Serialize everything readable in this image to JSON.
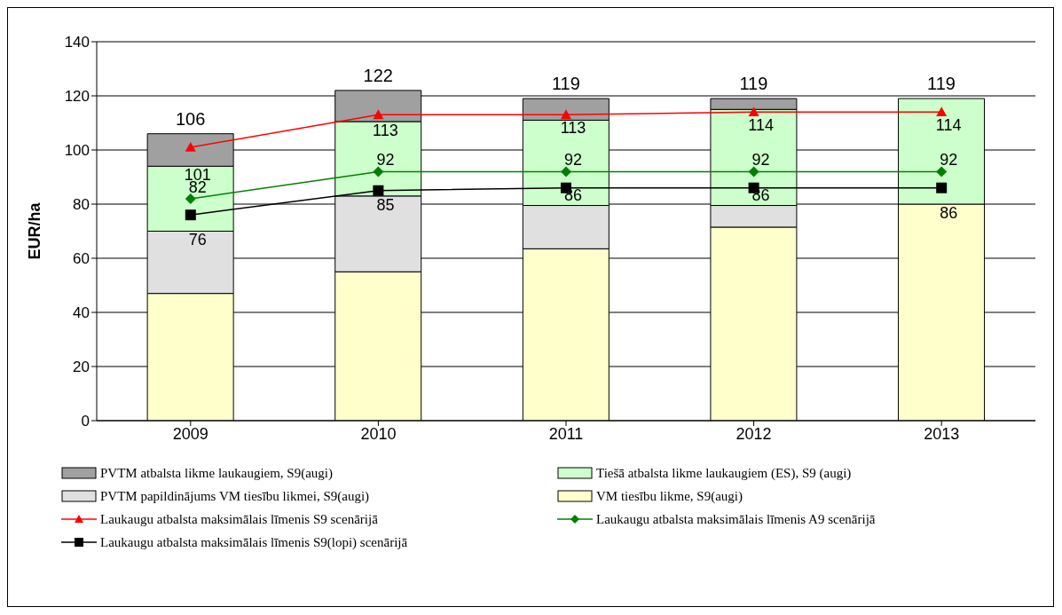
{
  "chart_data": {
    "type": "bar",
    "stacked": true,
    "ylabel": "EUR/ha",
    "categories": [
      "2009",
      "2010",
      "2011",
      "2012",
      "2013"
    ],
    "series": [
      {
        "name": "VM tiesību likme, S9(augi)",
        "color": "#ffffcc",
        "values": [
          47,
          55,
          63.5,
          71.5,
          80
        ]
      },
      {
        "name": "PVTM papildinājums VM tiesību likmei, S9(augi)",
        "color": "#e0e0e0",
        "values": [
          23,
          28,
          16,
          8,
          0
        ]
      },
      {
        "name": "Tiešā atbalsta likme laukaugiem (ES), S9 (augi)",
        "color": "#ccffcc",
        "values": [
          24,
          27.5,
          31.5,
          35.5,
          39
        ]
      },
      {
        "name": "PVTM atbalsta likme laukaugiem, S9(augi)",
        "color": "#a0a0a0",
        "values": [
          12,
          11.5,
          8,
          4,
          0
        ]
      },
      {
        "name": "Laukaugu atbalsta maksimālais līmenis S9 scenārijā",
        "type": "line",
        "color": "#ff0000",
        "marker": "triangle",
        "values": [
          101,
          113,
          113,
          114,
          114
        ],
        "value_labels": [
          "101",
          "113",
          "113",
          "114",
          "114"
        ]
      },
      {
        "name": "Laukaugu atbalsta maksimālais līmenis A9 scenārijā",
        "type": "line",
        "color": "#008000",
        "marker": "diamond",
        "values": [
          82,
          92,
          92,
          92,
          92
        ],
        "value_labels": [
          "82",
          "92",
          "92",
          "92",
          "92"
        ]
      },
      {
        "name": "Laukaugu atbalsta maksimālais līmenis S9(lopi) scenārijā",
        "type": "line",
        "color": "#000000",
        "marker": "square",
        "values": [
          76,
          85,
          86,
          86,
          86
        ],
        "value_labels": [
          "76",
          "85",
          "86",
          "86",
          "86"
        ]
      }
    ],
    "totals": [
      "106",
      "122",
      "119",
      "119",
      "119"
    ],
    "ylim": [
      0,
      140
    ],
    "yticks": [
      0,
      20,
      40,
      60,
      80,
      100,
      120,
      140
    ],
    "grid": "y",
    "legend": "bottom"
  }
}
